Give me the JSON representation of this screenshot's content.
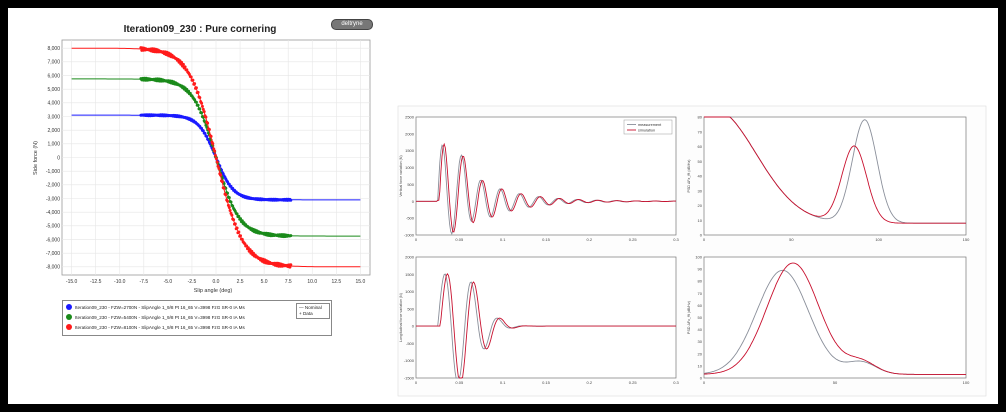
{
  "badge": "deltryne",
  "chart_data": [
    {
      "type": "scatter",
      "title": "Iteration09_230 : Pure cornering",
      "xlabel": "Slip angle (deg)",
      "ylabel": "Side force (N)",
      "xlim": [
        -16,
        16
      ],
      "ylim": [
        -8600,
        8600
      ],
      "xticks": [
        -15.0,
        -12.5,
        -10.0,
        -7.5,
        -5.0,
        -2.5,
        0.0,
        2.5,
        5.0,
        7.5,
        10.0,
        12.5,
        15.0
      ],
      "xtick_labels": [
        "-15.0",
        "-12.5",
        "-10.0",
        "-7.5",
        "-5.0",
        "-2.5",
        "0.0",
        "2.5",
        "5.0",
        "7.5",
        "10.0",
        "12.5",
        "15.0"
      ],
      "yticks": [
        8000,
        7000,
        6000,
        5000,
        4000,
        3000,
        2000,
        1000,
        0,
        -1000,
        -2000,
        -3000,
        -4000,
        -5000,
        -6000,
        -7000,
        -8000
      ],
      "ytick_labels": [
        "8,000",
        "7,000",
        "6,000",
        "5,000",
        "4,000",
        "3,000",
        "2,000",
        "1,000",
        "0",
        "-1,000",
        "-2,000",
        "-3,000",
        "-4,000",
        "-5,000",
        "-6,000",
        "-7,000",
        "-8,000"
      ],
      "grid": true,
      "series": [
        {
          "name": "Iteration09_230 - FZW=2700N - SlipAngle 1_9/8 Pt 16_65 V=3998 FzG SR-0 IA Ms",
          "color": "#1a1aff",
          "peak": 3100,
          "stiffness": 0.55,
          "data_range": [
            -7.8,
            7.8
          ]
        },
        {
          "name": "Iteration09_230 - FZW=5400N - SlipAngle 1_9/8 Pt 16_65 V=3998 FzG SR-0 IA Ms",
          "color": "#1a8a1a",
          "peak": 5750,
          "stiffness": 0.42,
          "data_range": [
            -7.8,
            7.8
          ]
        },
        {
          "name": "Iteration09_230 - FZW=8100N - SlipAngle 1_9/8 Pt 16_65 V=3998 FzG SR-0 IA Ms",
          "color": "#ff1a1a",
          "peak": 8000,
          "stiffness": 0.36,
          "data_range": [
            -7.8,
            7.8
          ]
        }
      ],
      "legend_secondary": [
        "Nominal",
        "Data"
      ],
      "legend": "below"
    },
    {
      "type": "line",
      "title": "",
      "xlim": [
        0,
        0.3
      ],
      "ylim": [
        -1000,
        2500
      ],
      "xtick_labels": [
        "0",
        "0.05",
        "0.1",
        "0.15",
        "0.2",
        "0.25",
        "0.3"
      ],
      "ytick_labels": [
        "2500",
        "2000",
        "1500",
        "1000",
        "500",
        "0",
        "-500",
        "-1000"
      ],
      "ylabel": "Vertical force variation (N)",
      "legend_entries": [
        "measurement",
        "simulation"
      ]
    },
    {
      "type": "line",
      "title": "",
      "xlim": [
        0,
        150
      ],
      "ylim": [
        0,
        80
      ],
      "xtick_labels": [
        "0",
        "50",
        "100",
        "150"
      ],
      "ytick_labels": [
        "80",
        "70",
        "60",
        "50",
        "40",
        "30",
        "20",
        "10",
        "0"
      ],
      "ylabel": "PSD ΔFz_fft (dB/Hz)"
    },
    {
      "type": "line",
      "title": "",
      "xlim": [
        0,
        0.3
      ],
      "ylim": [
        -1500,
        2000
      ],
      "xtick_labels": [
        "0",
        "0.05",
        "0.1",
        "0.15",
        "0.2",
        "0.25",
        "0.3"
      ],
      "ytick_labels": [
        "2000",
        "1500",
        "1000",
        "500",
        "0",
        "-500",
        "-1000",
        "-1500"
      ],
      "ylabel": "Longitudinal force variation (N)"
    },
    {
      "type": "line",
      "title": "",
      "xlim": [
        0,
        100
      ],
      "ylim": [
        0,
        100
      ],
      "xtick_labels": [
        "0",
        "50",
        "100"
      ],
      "ytick_labels": [
        "100",
        "90",
        "80",
        "70",
        "60",
        "50",
        "40",
        "30",
        "20",
        "10",
        "0"
      ],
      "ylabel": "PSD ΔFx_fft (dB/Hz)"
    }
  ]
}
